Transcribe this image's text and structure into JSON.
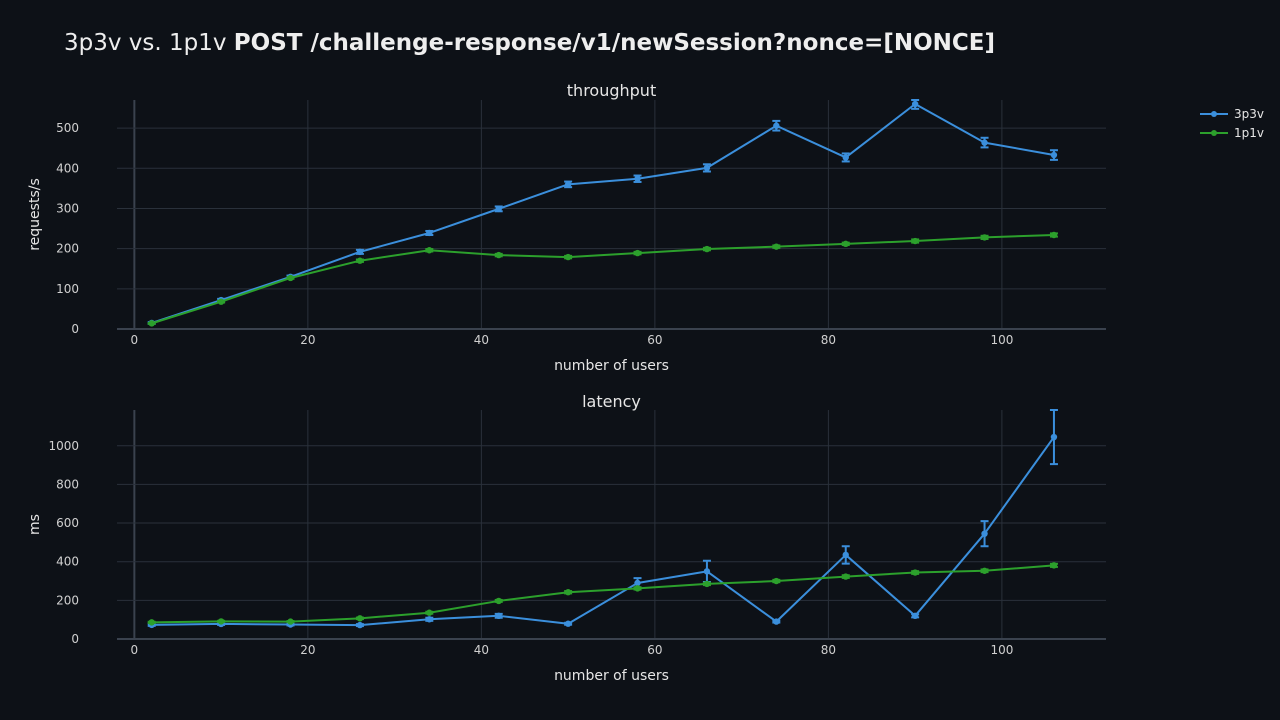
{
  "title": {
    "prefix": "3p3v vs. 1p1v ",
    "bold": "POST /challenge-response/v1/newSession?nonce=[NONCE]"
  },
  "colors": {
    "background": "#0d1117",
    "series_3p3v": "#3b8fdc",
    "series_1p1v": "#2ca02c"
  },
  "legend": [
    "3p3v",
    "1p1v"
  ],
  "chart_data": [
    {
      "type": "line",
      "title": "throughput",
      "xlabel": "number of users",
      "ylabel": "requests/s",
      "xlim": [
        -2,
        112
      ],
      "ylim": [
        0,
        570
      ],
      "xticks": [
        0,
        20,
        40,
        60,
        80,
        100
      ],
      "yticks": [
        0,
        100,
        200,
        300,
        400,
        500
      ],
      "x": [
        2,
        10,
        18,
        26,
        34,
        42,
        50,
        58,
        66,
        74,
        82,
        90,
        98,
        106
      ],
      "grid": true,
      "legend_position": "top-right",
      "series": [
        {
          "name": "3p3v",
          "values": [
            15,
            72,
            130,
            192,
            239,
            299,
            360,
            374,
            401,
            506,
            427,
            560,
            464,
            433
          ],
          "errors": [
            2,
            3,
            3,
            5,
            5,
            6,
            7,
            8,
            9,
            12,
            10,
            12,
            12,
            12
          ]
        },
        {
          "name": "1p1v",
          "values": [
            14,
            68,
            127,
            170,
            196,
            184,
            179,
            189,
            199,
            205,
            212,
            219,
            228,
            234
          ],
          "errors": [
            1,
            2,
            2,
            3,
            3,
            3,
            3,
            3,
            3,
            3,
            3,
            4,
            4,
            4
          ]
        }
      ]
    },
    {
      "type": "line",
      "title": "latency",
      "xlabel": "number of users",
      "ylabel": "ms",
      "xlim": [
        -2,
        112
      ],
      "ylim": [
        0,
        1185
      ],
      "xticks": [
        0,
        20,
        40,
        60,
        80,
        100
      ],
      "yticks": [
        0,
        200,
        400,
        600,
        800,
        1000
      ],
      "x": [
        2,
        10,
        18,
        26,
        34,
        42,
        50,
        58,
        66,
        74,
        82,
        90,
        98,
        106
      ],
      "grid": true,
      "series": [
        {
          "name": "3p3v",
          "values": [
            73,
            78,
            75,
            72,
            102,
            120,
            79,
            290,
            350,
            90,
            435,
            120,
            545,
            1045
          ],
          "errors": [
            5,
            5,
            5,
            5,
            8,
            10,
            5,
            25,
            55,
            5,
            45,
            8,
            65,
            140
          ]
        },
        {
          "name": "1p1v",
          "values": [
            86,
            91,
            90,
            107,
            136,
            197,
            242,
            262,
            285,
            300,
            323,
            344,
            353,
            381
          ],
          "errors": [
            3,
            3,
            3,
            4,
            5,
            5,
            6,
            6,
            6,
            6,
            7,
            7,
            7,
            8
          ]
        }
      ]
    }
  ]
}
